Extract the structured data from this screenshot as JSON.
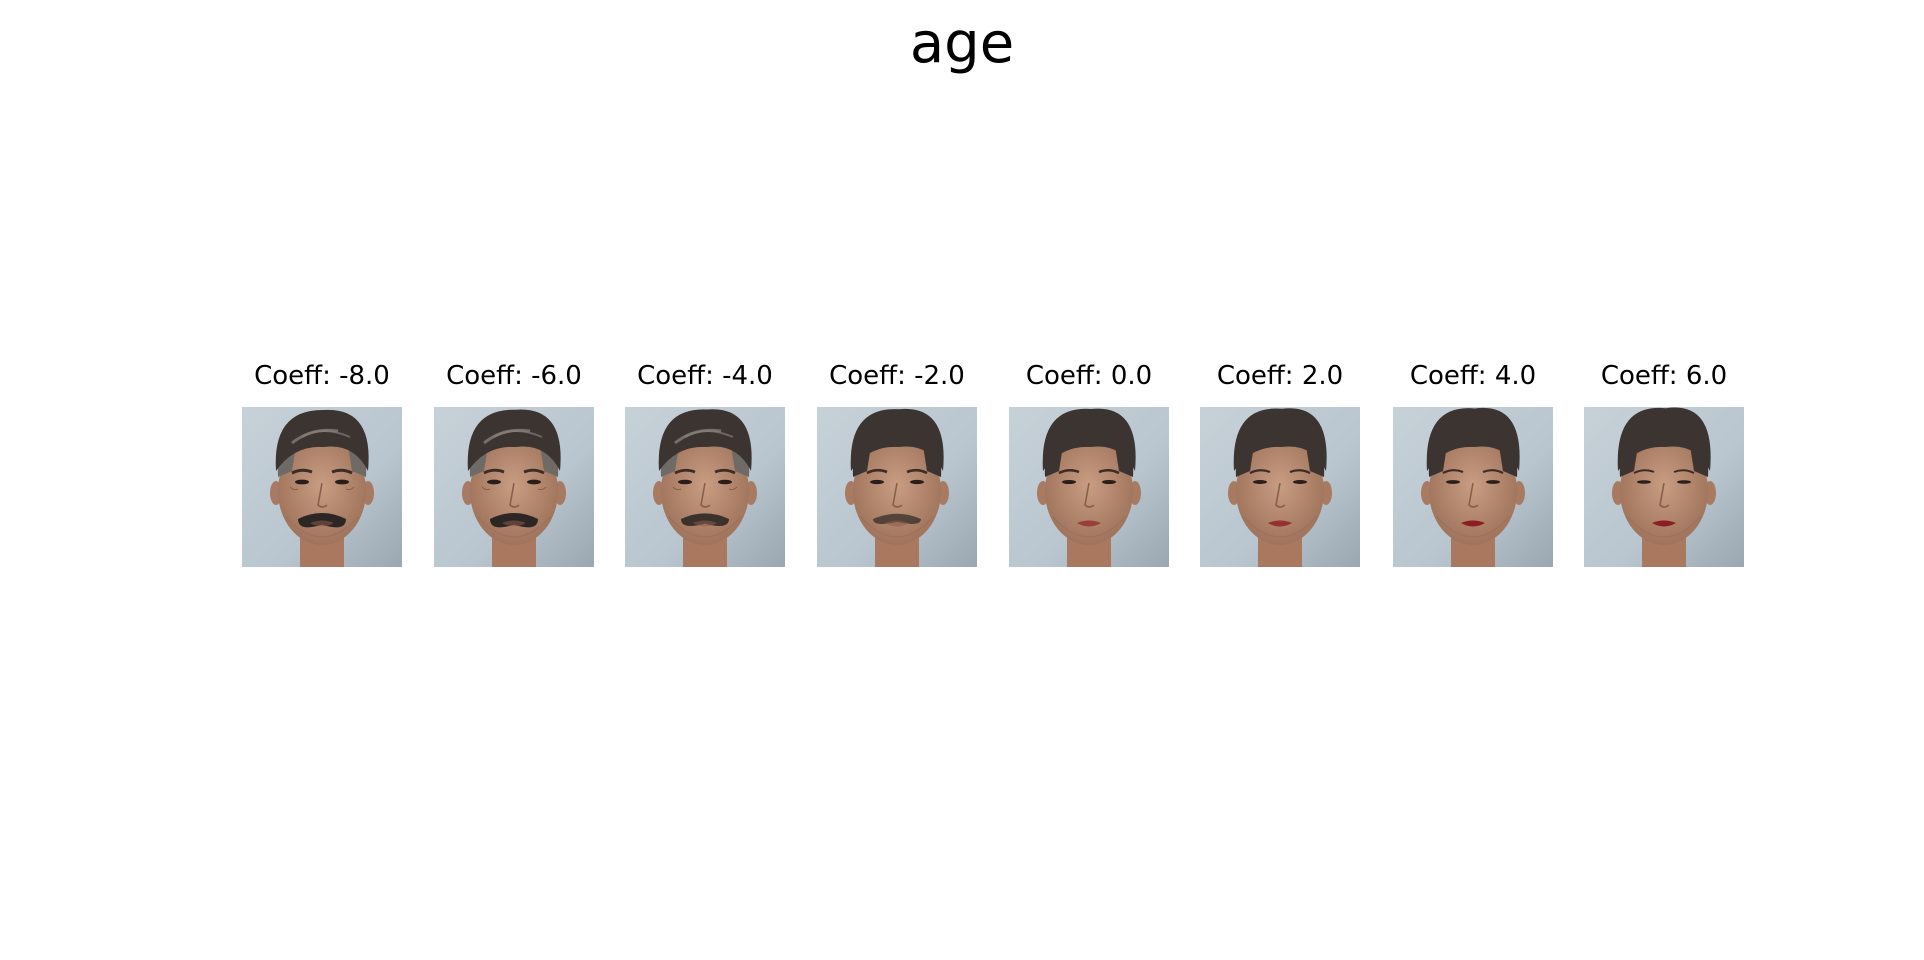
{
  "figure": {
    "title": "age"
  },
  "panels": [
    {
      "coeff": -8.0,
      "label": "Coeff: -8.0",
      "image": "face-with-large-mustache"
    },
    {
      "coeff": -6.0,
      "label": "Coeff: -6.0",
      "image": "face-with-large-mustache"
    },
    {
      "coeff": -4.0,
      "label": "Coeff: -4.0",
      "image": "face-with-mustache"
    },
    {
      "coeff": -2.0,
      "label": "Coeff: -2.0",
      "image": "face-with-light-mustache"
    },
    {
      "coeff": 0.0,
      "label": "Coeff: 0.0",
      "image": "face-neutral"
    },
    {
      "coeff": 2.0,
      "label": "Coeff: 2.0",
      "image": "face-younger"
    },
    {
      "coeff": 4.0,
      "label": "Coeff: 4.0",
      "image": "face-younger-red-lips"
    },
    {
      "coeff": 6.0,
      "label": "Coeff: 6.0",
      "image": "face-youngest-red-lips"
    }
  ],
  "colors": {
    "background": "#ffffff",
    "text": "#000000",
    "photo_background": "#b9c6cf",
    "hair": "#3b3431",
    "skin": "#b98d72",
    "lips": "#8b1e24"
  }
}
